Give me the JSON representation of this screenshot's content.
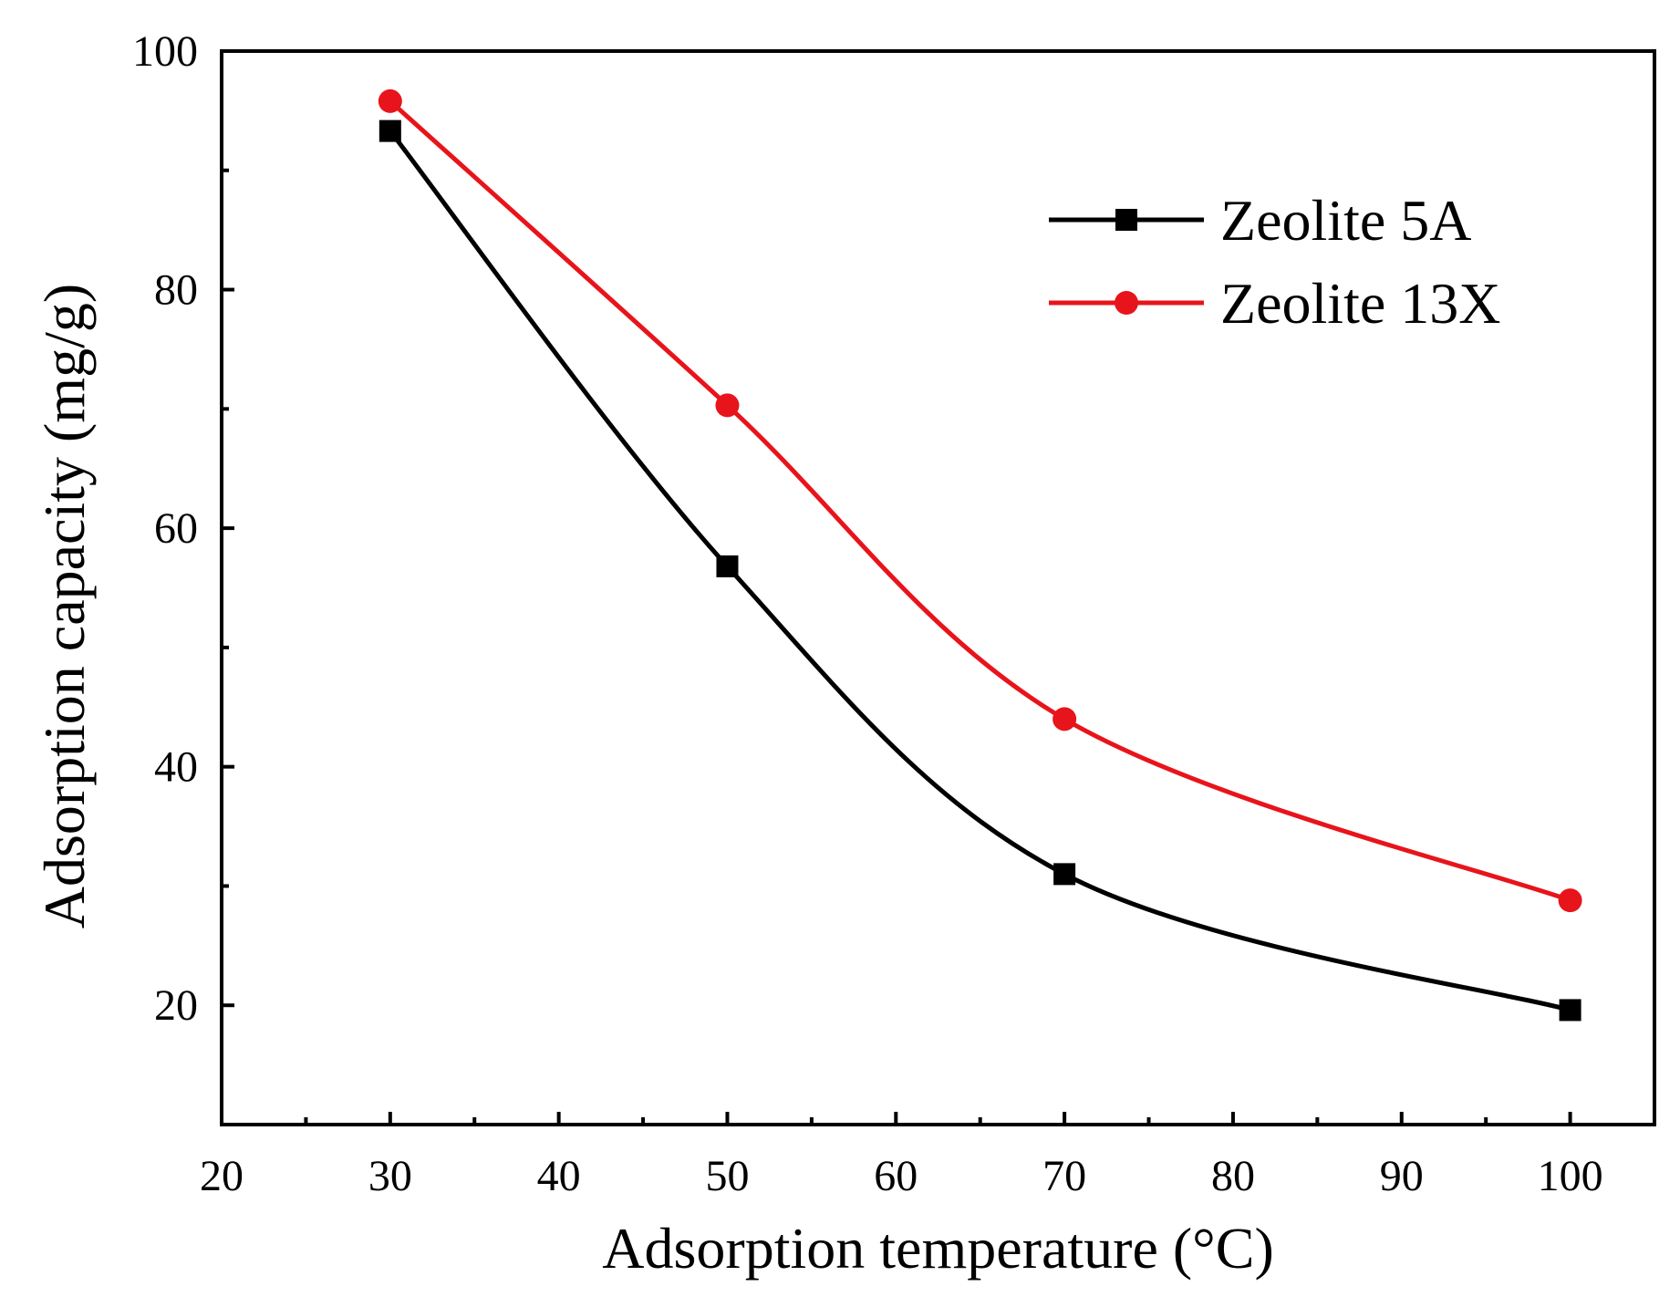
{
  "chart_data": {
    "type": "line",
    "title": "",
    "xlabel": "Adsorption temperature (°C)",
    "ylabel": "Adsorption capacity (mg/g)",
    "xlim": [
      20,
      105
    ],
    "ylim": [
      10,
      100
    ],
    "x_ticks": [
      20,
      30,
      40,
      50,
      60,
      70,
      80,
      90,
      100
    ],
    "y_ticks": [
      20,
      40,
      60,
      80,
      100
    ],
    "grid": false,
    "legend_position": "top-right",
    "x": [
      30,
      50,
      70,
      100
    ],
    "series": [
      {
        "name": "Zeolite 5A",
        "color": "#000000",
        "marker": "square",
        "values": [
          93.3,
          56.8,
          31.0,
          19.6
        ]
      },
      {
        "name": "Zeolite 13X",
        "color": "#e8141b",
        "marker": "circle",
        "values": [
          95.8,
          70.3,
          44.0,
          28.8
        ]
      }
    ]
  }
}
